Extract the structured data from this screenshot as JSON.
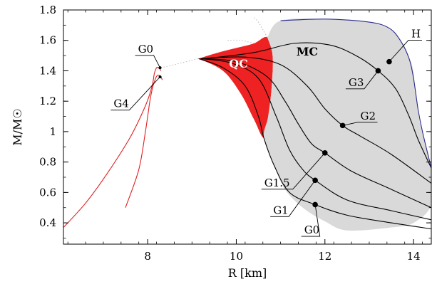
{
  "chart_data": {
    "type": "line",
    "title": "",
    "xlabel": "R [km]",
    "ylabel": "M/M☉",
    "xlim": [
      6.1,
      14.4
    ],
    "ylim": [
      0.26,
      1.8
    ],
    "xticks": [
      8,
      10,
      12,
      14
    ],
    "yticks": [
      0.4,
      0.6,
      0.8,
      1,
      1.2,
      1.4,
      1.6,
      1.8
    ],
    "xtick_labels": [
      "8",
      "10",
      "12",
      "14"
    ],
    "ytick_labels": [
      "0.4",
      "0.6",
      "0.8",
      "1",
      "1.2",
      "1.4",
      "1.6",
      "1.8"
    ],
    "grid": false,
    "colors": {
      "strange_star": "#e02020",
      "quark_core": "#ee2222",
      "mixed_core": "#d9d9d9",
      "h_curve": "#2a2a8a",
      "curves": "#000000"
    },
    "regions": [
      {
        "label": "QC",
        "color": "#ee2222",
        "boundary": [
          [
            9.15,
            1.48
          ],
          [
            9.6,
            1.52
          ],
          [
            10.0,
            1.55
          ],
          [
            10.4,
            1.58
          ],
          [
            10.7,
            1.62
          ],
          [
            10.82,
            1.5
          ],
          [
            10.8,
            1.3
          ],
          [
            10.72,
            1.1
          ],
          [
            10.62,
            0.96
          ],
          [
            10.4,
            1.08
          ],
          [
            10.1,
            1.25
          ],
          [
            9.7,
            1.4
          ],
          [
            9.15,
            1.48
          ]
        ]
      },
      {
        "label": "MC",
        "color": "#d9d9d9",
        "boundary": [
          [
            10.7,
            1.62
          ],
          [
            11.0,
            1.73
          ],
          [
            12.0,
            1.74
          ],
          [
            13.0,
            1.72
          ],
          [
            13.6,
            1.64
          ],
          [
            13.95,
            1.45
          ],
          [
            14.05,
            1.25
          ],
          [
            14.15,
            1.05
          ],
          [
            14.4,
            0.76
          ],
          [
            14.4,
            0.52
          ],
          [
            14.0,
            0.4
          ],
          [
            13.5,
            0.37
          ],
          [
            12.5,
            0.35
          ],
          [
            12.0,
            0.41
          ],
          [
            11.5,
            0.5
          ],
          [
            11.1,
            0.62
          ],
          [
            10.85,
            0.78
          ],
          [
            10.62,
            0.96
          ],
          [
            10.72,
            1.1
          ],
          [
            10.8,
            1.3
          ],
          [
            10.82,
            1.5
          ],
          [
            10.7,
            1.62
          ]
        ]
      }
    ],
    "series": [
      {
        "name": "G0",
        "kind": "strange_star",
        "points": [
          [
            6.1,
            0.37
          ],
          [
            6.6,
            0.53
          ],
          [
            7.1,
            0.73
          ],
          [
            7.6,
            0.96
          ],
          [
            7.95,
            1.17
          ],
          [
            8.1,
            1.3
          ],
          [
            8.15,
            1.38
          ],
          [
            8.2,
            1.42
          ],
          [
            8.24,
            1.42
          ],
          [
            8.28,
            1.41
          ],
          [
            8.3,
            1.4
          ]
        ]
      },
      {
        "name": "G4",
        "kind": "strange_star",
        "points": [
          [
            7.5,
            0.5
          ],
          [
            7.8,
            0.75
          ],
          [
            7.95,
            1.0
          ],
          [
            8.05,
            1.2
          ],
          [
            8.12,
            1.3
          ],
          [
            8.18,
            1.35
          ],
          [
            8.22,
            1.37
          ],
          [
            8.26,
            1.37
          ],
          [
            8.3,
            1.36
          ],
          [
            8.33,
            1.34
          ]
        ]
      },
      {
        "name": "G0",
        "kind": "hybrid",
        "points": [
          [
            9.15,
            1.48
          ],
          [
            9.7,
            1.42
          ],
          [
            10.2,
            1.3
          ],
          [
            10.5,
            1.1
          ],
          [
            10.62,
            0.96
          ],
          [
            10.85,
            0.78
          ],
          [
            11.2,
            0.6
          ],
          [
            11.78,
            0.52
          ],
          [
            12.5,
            0.45
          ],
          [
            13.5,
            0.4
          ],
          [
            14.4,
            0.36
          ]
        ]
      },
      {
        "name": "G1",
        "kind": "hybrid",
        "points": [
          [
            9.2,
            1.48
          ],
          [
            9.9,
            1.45
          ],
          [
            10.5,
            1.35
          ],
          [
            10.9,
            1.1
          ],
          [
            11.2,
            0.88
          ],
          [
            11.5,
            0.75
          ],
          [
            11.78,
            0.68
          ],
          [
            12.5,
            0.55
          ],
          [
            13.5,
            0.48
          ],
          [
            14.4,
            0.42
          ]
        ]
      },
      {
        "name": "G1.5",
        "kind": "hybrid",
        "points": [
          [
            9.2,
            1.48
          ],
          [
            10.0,
            1.46
          ],
          [
            10.7,
            1.36
          ],
          [
            11.1,
            1.2
          ],
          [
            11.4,
            1.05
          ],
          [
            11.7,
            0.92
          ],
          [
            12.0,
            0.86
          ],
          [
            12.6,
            0.74
          ],
          [
            13.5,
            0.62
          ],
          [
            14.4,
            0.5
          ]
        ]
      },
      {
        "name": "G2",
        "kind": "hybrid",
        "points": [
          [
            9.2,
            1.48
          ],
          [
            10.2,
            1.49
          ],
          [
            11.0,
            1.44
          ],
          [
            11.6,
            1.3
          ],
          [
            12.0,
            1.15
          ],
          [
            12.4,
            1.04
          ],
          [
            12.8,
            0.97
          ],
          [
            13.5,
            0.85
          ],
          [
            14.4,
            0.66
          ]
        ]
      },
      {
        "name": "G3",
        "kind": "hybrid",
        "points": [
          [
            9.3,
            1.48
          ],
          [
            10.4,
            1.52
          ],
          [
            11.3,
            1.58
          ],
          [
            12.1,
            1.57
          ],
          [
            12.7,
            1.5
          ],
          [
            13.2,
            1.4
          ],
          [
            13.6,
            1.28
          ],
          [
            13.9,
            1.1
          ],
          [
            14.1,
            0.95
          ],
          [
            14.4,
            0.76
          ]
        ]
      },
      {
        "name": "H",
        "kind": "hadronic",
        "points": [
          [
            11.0,
            1.73
          ],
          [
            12.0,
            1.74
          ],
          [
            13.0,
            1.72
          ],
          [
            13.45,
            1.68
          ],
          [
            13.7,
            1.6
          ],
          [
            13.9,
            1.48
          ],
          [
            14.0,
            1.35
          ],
          [
            14.1,
            1.15
          ],
          [
            14.2,
            1.0
          ],
          [
            14.4,
            0.76
          ]
        ]
      }
    ],
    "unstable_branches": [
      {
        "points": [
          [
            8.3,
            1.42
          ],
          [
            8.6,
            1.44
          ],
          [
            9.15,
            1.48
          ]
        ]
      },
      {
        "points": [
          [
            10.7,
            1.62
          ],
          [
            10.6,
            1.67
          ],
          [
            10.5,
            1.72
          ],
          [
            10.4,
            1.75
          ]
        ]
      },
      {
        "points": [
          [
            10.4,
            1.58
          ],
          [
            10.1,
            1.6
          ],
          [
            9.8,
            1.6
          ]
        ]
      }
    ],
    "annotations": [
      {
        "text": "G0",
        "point": [
          8.28,
          1.42
        ],
        "label_pos": [
          7.75,
          1.52
        ]
      },
      {
        "text": "G4",
        "point": [
          8.28,
          1.36
        ],
        "label_pos": [
          7.2,
          1.16
        ]
      },
      {
        "text": "G1.5",
        "point": [
          12.0,
          0.86
        ],
        "label_pos": [
          10.6,
          0.64
        ]
      },
      {
        "text": "G1",
        "point": [
          11.78,
          0.68
        ],
        "label_pos": [
          10.8,
          0.46
        ]
      },
      {
        "text": "G0",
        "point": [
          11.78,
          0.52
        ],
        "label_pos": [
          11.5,
          0.33
        ]
      },
      {
        "text": "G2",
        "point": [
          12.4,
          1.04
        ],
        "label_pos": [
          12.8,
          1.08
        ]
      },
      {
        "text": "G3",
        "point": [
          13.2,
          1.4
        ],
        "label_pos": [
          12.5,
          1.3
        ]
      },
      {
        "text": "H",
        "point": [
          13.45,
          1.46
        ],
        "label_pos": [
          13.95,
          1.62
        ]
      }
    ],
    "region_labels": [
      {
        "text": "QC",
        "pos": [
          10.05,
          1.42
        ],
        "color": "#ffffff"
      },
      {
        "text": "MC",
        "pos": [
          11.6,
          1.5
        ],
        "color": "#000000"
      }
    ]
  }
}
